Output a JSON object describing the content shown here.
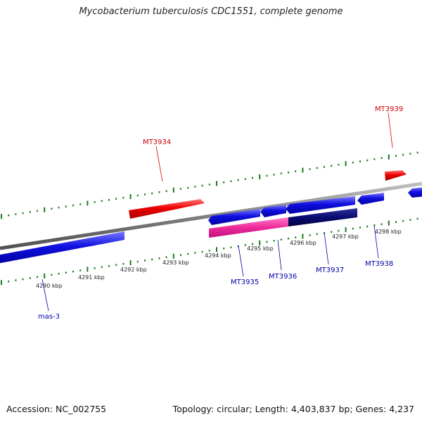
{
  "title": "Mycobacterium tuberculosis CDC1551, complete genome",
  "footer": {
    "accession": "Accession: NC_002755",
    "summary": "Topology: circular; Length: 4,403,837 bp; Genes: 4,237"
  },
  "colors": {
    "backbone": "#808080",
    "tick": "#1a7a1a",
    "forward_gene": "#ee0000",
    "reverse_gene": "#1010e0",
    "forward_label": "#cc0000",
    "reverse_label": "#0000aa",
    "feature_pink": "#ee2a9a",
    "feature_navy": "#0a0a70"
  },
  "scale": {
    "unit": "kbp",
    "labels": [
      "4290 kbp",
      "4291 kbp",
      "4292 kbp",
      "4293 kbp",
      "4294 kbp",
      "4295 kbp",
      "4296 kbp",
      "4297 kbp",
      "4298 kbp"
    ]
  },
  "genes": [
    {
      "name": "mas-3",
      "strand": "reverse"
    },
    {
      "name": "MT3934",
      "strand": "forward"
    },
    {
      "name": "MT3935",
      "strand": "reverse"
    },
    {
      "name": "MT3936",
      "strand": "reverse"
    },
    {
      "name": "MT3937",
      "strand": "reverse"
    },
    {
      "name": "MT3938",
      "strand": "reverse"
    },
    {
      "name": "MT3939",
      "strand": "forward"
    }
  ]
}
